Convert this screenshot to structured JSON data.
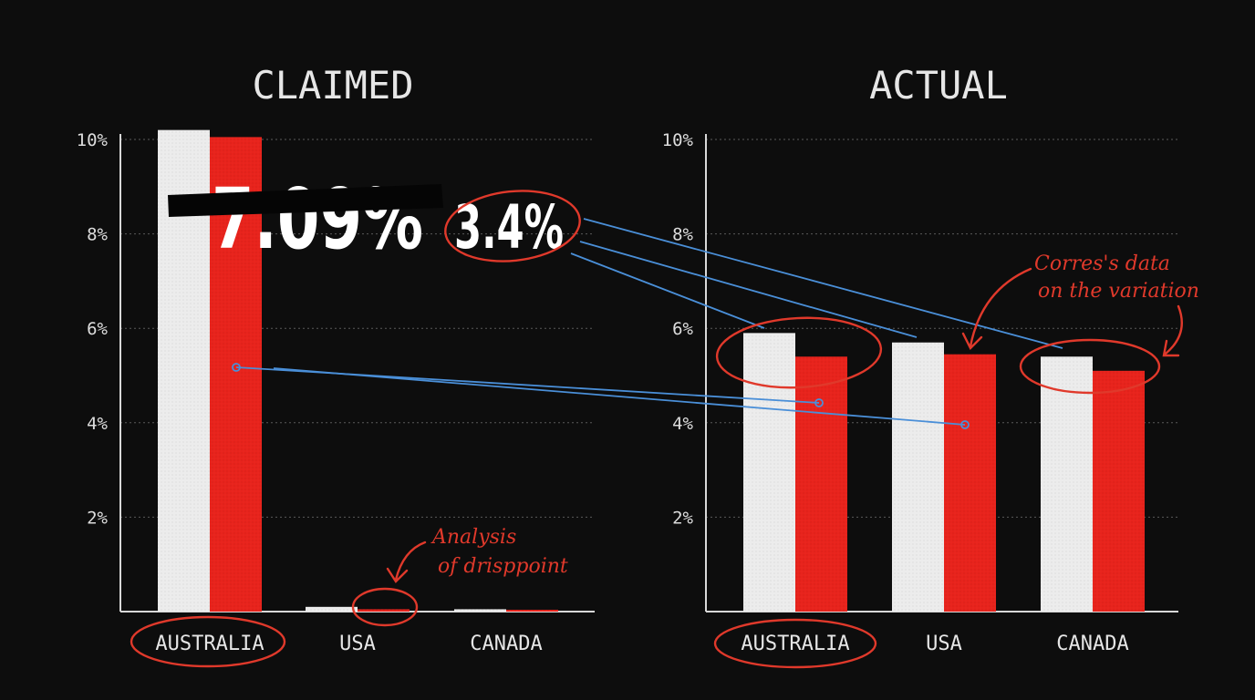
{
  "colors": {
    "background": "#0d0d0d",
    "white_bar": "#ececec",
    "red_bar": "#e8231c",
    "annotation": "#e0392b",
    "connector": "#4a8fd8"
  },
  "chart_data": [
    {
      "type": "bar",
      "title": "CLAIMED",
      "categories": [
        "AUSTRALIA",
        "USA",
        "CANADA"
      ],
      "series": [
        {
          "values": [
            10.2,
            0.1,
            0.05
          ]
        },
        {
          "values": [
            10.05,
            0.05,
            0.03
          ]
        }
      ],
      "yticks": [
        "10%",
        "8%",
        "6%",
        "4%",
        "2%"
      ],
      "ytick_values": [
        10,
        8,
        6,
        4,
        2
      ],
      "ylim": [
        0,
        10
      ],
      "grid": true
    },
    {
      "type": "bar",
      "title": "ACTUAL",
      "categories": [
        "AUSTRALIA",
        "USA",
        "CANADA"
      ],
      "series": [
        {
          "values": [
            5.9,
            5.7,
            5.4
          ]
        },
        {
          "values": [
            5.4,
            5.45,
            5.1
          ]
        }
      ],
      "yticks": [
        "10%",
        "8%",
        "6%",
        "4%",
        "2%"
      ],
      "ytick_values": [
        10,
        8,
        6,
        4,
        2
      ],
      "ylim": [
        0,
        10
      ],
      "grid": true
    }
  ],
  "annotations": {
    "struck_value": "7.09%",
    "circled_value": "3.4%",
    "note_left_line1": "Analysis",
    "note_left_line2": "of drisppoint",
    "note_right_line1": "Corres's data",
    "note_right_line2": "on the variation"
  }
}
